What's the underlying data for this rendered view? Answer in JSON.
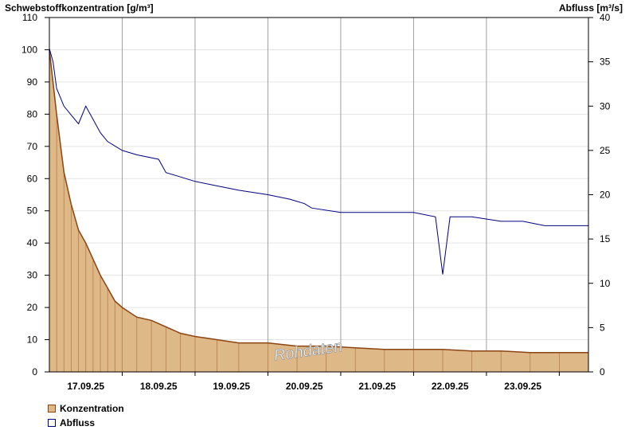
{
  "chart_data": {
    "type": "area",
    "left_axis_title": "Schwebstoffkonzentration [g/m³]",
    "right_axis_title": "Abfluss [m³/s]",
    "y_left": {
      "min": 0,
      "max": 110,
      "ticks": [
        0,
        10,
        20,
        30,
        40,
        50,
        60,
        70,
        80,
        90,
        100,
        110
      ]
    },
    "y_right": {
      "min": 0,
      "max": 40,
      "ticks": [
        0,
        5,
        10,
        15,
        20,
        25,
        30,
        35,
        40
      ]
    },
    "x_range": [
      "16.09.25 12:00",
      "23.09.25 21:00"
    ],
    "x_tick_labels": [
      "17.09.25",
      "18.09.25",
      "19.09.25",
      "20.09.25",
      "21.09.25",
      "22.09.25",
      "23.09.25"
    ],
    "grid": true,
    "watermark": "Rohdaten",
    "series": [
      {
        "name": "Konzentration",
        "axis": "left",
        "fill": "#deb887",
        "stroke": "#8b4513",
        "x": [
          0,
          0.1,
          0.2,
          0.3,
          0.4,
          0.5,
          0.6,
          0.7,
          0.8,
          0.9,
          1.0,
          1.2,
          1.4,
          1.6,
          1.8,
          2.0,
          2.3,
          2.6,
          3.0,
          3.4,
          3.8,
          4.2,
          4.6,
          5.0,
          5.4,
          5.8,
          6.2,
          6.6,
          7.0,
          7.4
        ],
        "values": [
          100,
          80,
          62,
          52,
          44,
          40,
          35,
          30,
          26,
          22,
          20,
          17,
          16,
          14,
          12,
          11,
          10,
          9,
          9,
          8,
          8,
          7.5,
          7,
          7,
          7,
          6.5,
          6.5,
          6,
          6,
          6
        ]
      },
      {
        "name": "Abfluss",
        "axis": "right",
        "stroke": "#000080",
        "x": [
          0,
          0.05,
          0.1,
          0.2,
          0.3,
          0.4,
          0.5,
          0.6,
          0.7,
          0.8,
          1.0,
          1.2,
          1.5,
          1.6,
          1.8,
          2.0,
          2.3,
          2.6,
          3.0,
          3.3,
          3.5,
          3.6,
          4.0,
          4.5,
          5.0,
          5.3,
          5.4,
          5.5,
          5.8,
          6.2,
          6.5,
          6.8,
          7.0,
          7.4
        ],
        "values": [
          36.5,
          35,
          32,
          30,
          29,
          28,
          30,
          28.5,
          27,
          26,
          25,
          24.5,
          24,
          22.5,
          22,
          21.5,
          21,
          20.5,
          20,
          19.5,
          19,
          18.5,
          18,
          18,
          18,
          17.5,
          11,
          17.5,
          17.5,
          17,
          17,
          16.5,
          16.5,
          16.5
        ]
      }
    ]
  },
  "legend": [
    {
      "label": "Konzentration",
      "fill": "#deb887",
      "stroke": "#8b4513"
    },
    {
      "label": "Abfluss",
      "fill": "#ffffff",
      "stroke": "#000080"
    }
  ]
}
